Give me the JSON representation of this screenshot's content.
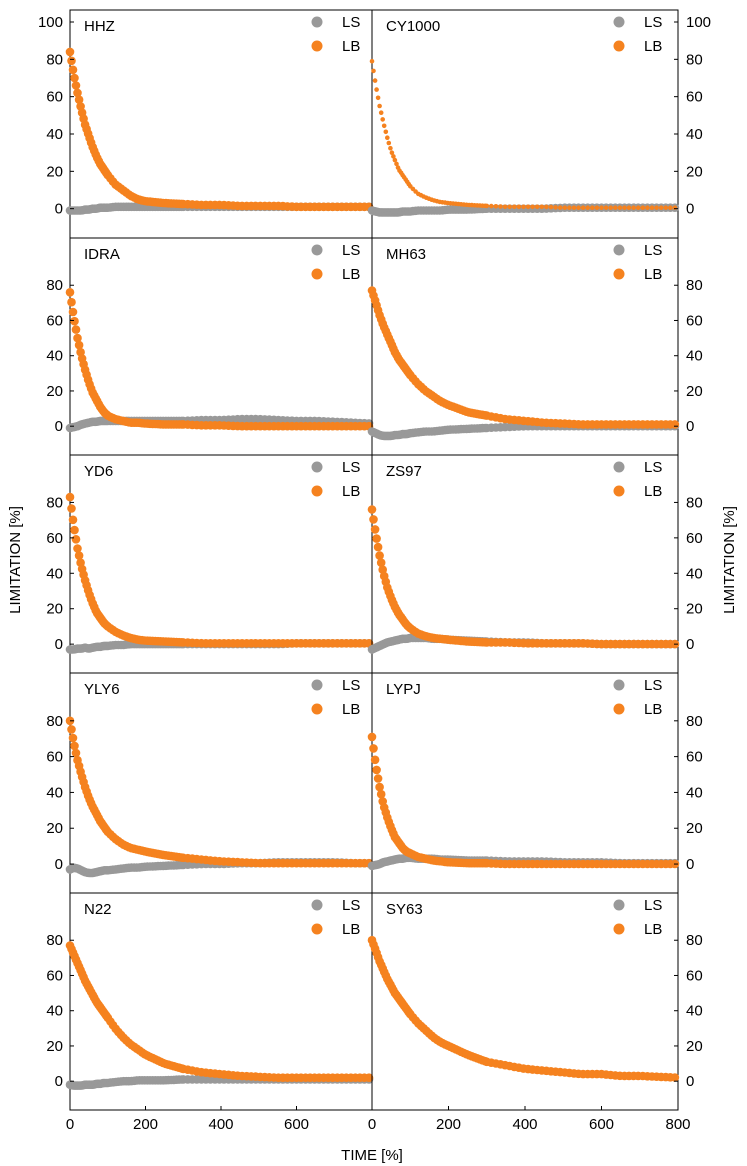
{
  "figure": {
    "ylabel": "LIMITATION [%]",
    "xlabel": "TIME [%]"
  },
  "colors": {
    "LS": "#999999",
    "LB": "#f5821f",
    "axes": "#000000"
  },
  "chart_data": {
    "type": "scatter",
    "layout": "5 rows x 2 columns, shared axes",
    "xlabel": "TIME [%]",
    "ylabel": "LIMITATION [%]",
    "xlim": [
      0,
      800
    ],
    "x_ticks": [
      0,
      200,
      400,
      600,
      800
    ],
    "ylim": [
      -5,
      100
    ],
    "y_ticks": [
      0,
      20,
      40,
      60,
      80,
      100
    ],
    "legend_labels": [
      "LS",
      "LB"
    ],
    "legend_placement": "top-right",
    "grid": false,
    "note": "Series values sampled at the x points shown; LB decays from its initial value, LS stays near zero",
    "x": [
      0,
      10,
      20,
      30,
      40,
      50,
      60,
      70,
      80,
      90,
      100,
      120,
      140,
      160,
      180,
      200,
      250,
      300,
      350,
      400,
      450,
      500,
      550,
      600,
      650,
      700,
      750,
      800
    ],
    "panels": [
      {
        "label": "HHZ",
        "series": [
          {
            "name": "LS",
            "values": [
              -1,
              -1,
              -1,
              -1,
              -0.5,
              -0.5,
              0,
              0,
              0.5,
              0.5,
              0.5,
              1,
              1,
              1,
              1,
              1,
              1,
              1,
              1,
              1,
              1,
              1,
              1,
              1,
              1,
              1,
              1,
              1
            ]
          },
          {
            "name": "LB",
            "values": [
              84,
              72,
              62,
              53,
              45,
              39,
              33,
              28,
              24,
              21,
              18,
              13,
              10,
              7,
              5,
              4,
              3,
              2.5,
              2,
              2,
              1.5,
              1.5,
              1.5,
              1,
              1,
              1,
              1,
              1
            ]
          }
        ]
      },
      {
        "label": "CY1000",
        "series": [
          {
            "name": "LS",
            "values": [
              -1,
              -1.5,
              -2,
              -2,
              -2,
              -2,
              -2,
              -2,
              -1.5,
              -1.5,
              -1.5,
              -1,
              -1,
              -1,
              -1,
              -0.5,
              -0.5,
              0,
              0,
              0,
              0,
              0.5,
              0.5,
              0.5,
              0.5,
              0.5,
              0.5,
              0.5
            ]
          },
          {
            "name": "LB",
            "values": [
              79,
              66,
              55,
              46,
              38,
              31,
              26,
              21,
              18,
              15,
              12,
              8,
              6,
              4.5,
              3.5,
              3,
              2,
              1.5,
              1,
              1,
              1,
              0.5,
              0.5,
              0.5,
              0.5,
              0.5,
              0.5,
              0.5
            ]
          }
        ]
      },
      {
        "label": "IDRA",
        "series": [
          {
            "name": "LS",
            "values": [
              -1,
              -0.5,
              0,
              1,
              1.5,
              2,
              2.5,
              2.5,
              3,
              3,
              3,
              3,
              3,
              3,
              3,
              3,
              3,
              3,
              3.5,
              3.5,
              4,
              4,
              3.5,
              3,
              3,
              2.5,
              2,
              1.5
            ]
          },
          {
            "name": "LB",
            "values": [
              76,
              62,
              50,
              40,
              32,
              25,
              19,
              15,
              11,
              8,
              6,
              4,
              3,
              2,
              2,
              1.5,
              1,
              1,
              0.5,
              0.5,
              0,
              0,
              0,
              0,
              0,
              0,
              0,
              0
            ]
          }
        ]
      },
      {
        "label": "MH63",
        "series": [
          {
            "name": "LS",
            "values": [
              -3,
              -4,
              -5,
              -5.5,
              -5.5,
              -5.5,
              -5,
              -5,
              -4.5,
              -4.5,
              -4,
              -3.5,
              -3,
              -3,
              -2.5,
              -2,
              -1.5,
              -1,
              -0.5,
              0,
              0,
              0,
              0,
              0,
              0,
              0,
              0,
              0
            ]
          },
          {
            "name": "LB",
            "values": [
              77,
              70,
              63,
              57,
              52,
              47,
              42,
              38,
              35,
              32,
              29,
              24,
              20,
              17,
              14,
              12,
              8,
              6,
              4,
              3,
              2,
              1.5,
              1,
              1,
              1,
              1,
              1,
              1
            ]
          }
        ]
      },
      {
        "label": "YD6",
        "series": [
          {
            "name": "LS",
            "values": [
              -3,
              -3,
              -2.5,
              -2.5,
              -2,
              -2.5,
              -2,
              -1.5,
              -1.5,
              -1,
              -1,
              -0.5,
              -0.5,
              0,
              0,
              0,
              0,
              0,
              0,
              0,
              0,
              0,
              0,
              0.5,
              0.5,
              0.5,
              0.5,
              0.5
            ]
          },
          {
            "name": "LB",
            "values": [
              83,
              67,
              54,
              44,
              36,
              29,
              23,
              18,
              15,
              12,
              10,
              7,
              5,
              3.5,
              2.5,
              2,
              1.5,
              1,
              0.5,
              0.5,
              0.5,
              0.5,
              0.5,
              0.5,
              0.5,
              0.5,
              0.5,
              0.5
            ]
          }
        ]
      },
      {
        "label": "ZS97",
        "series": [
          {
            "name": "LS",
            "values": [
              -3,
              -2,
              -1,
              0,
              1,
              1.5,
              2,
              2.5,
              3,
              3,
              3.5,
              3.5,
              3.5,
              3,
              3,
              2.5,
              2,
              1.5,
              1,
              1,
              0.5,
              0.5,
              0.5,
              0,
              0,
              0,
              0,
              0
            ]
          },
          {
            "name": "LB",
            "values": [
              76,
              62,
              50,
              40,
              32,
              26,
              21,
              17,
              14,
              11,
              9,
              6,
              4.5,
              3.5,
              3,
              2.5,
              1.5,
              1,
              1,
              0.5,
              0.5,
              0.5,
              0.5,
              0,
              0,
              0,
              0,
              0
            ]
          }
        ]
      },
      {
        "label": "YLY6",
        "series": [
          {
            "name": "LS",
            "values": [
              -3,
              -2,
              -2.5,
              -3.5,
              -4.5,
              -5,
              -5,
              -4.5,
              -4,
              -3.5,
              -3.5,
              -3,
              -2.5,
              -2,
              -2,
              -1.5,
              -1,
              -0.5,
              0,
              0,
              0.5,
              0.5,
              1,
              1,
              1,
              1,
              0.5,
              0.5
            ]
          },
          {
            "name": "LB",
            "values": [
              80,
              68,
              58,
              50,
              43,
              37,
              32,
              28,
              24,
              21,
              18,
              14,
              11,
              9,
              8,
              7,
              5,
              3.5,
              2.5,
              1.5,
              1,
              0.5,
              0.5,
              0.5,
              0.5,
              0.5,
              0.5,
              0.5
            ]
          }
        ]
      },
      {
        "label": "LYPJ",
        "series": [
          {
            "name": "LS",
            "values": [
              -1,
              -0.5,
              0,
              1,
              1.5,
              2,
              2.5,
              3,
              3,
              3.5,
              3.5,
              3,
              3,
              3,
              2.5,
              2.5,
              2,
              2,
              1.5,
              1.5,
              1.5,
              1,
              1,
              1,
              0.5,
              0.5,
              0.5,
              0.5
            ]
          },
          {
            "name": "LB",
            "values": [
              71,
              55,
              43,
              33,
              26,
              20,
              15,
              12,
              9,
              7,
              6,
              4,
              3,
              2,
              1.5,
              1,
              0.5,
              0.5,
              0,
              0,
              0,
              0,
              0,
              0,
              0,
              0,
              0,
              0
            ]
          }
        ]
      },
      {
        "label": "N22",
        "series": [
          {
            "name": "LS",
            "values": [
              -2,
              -2.5,
              -2.5,
              -2.5,
              -2,
              -2,
              -2,
              -1.5,
              -1.5,
              -1,
              -1,
              -0.5,
              0,
              0,
              0.5,
              0.5,
              0.5,
              1,
              1,
              1,
              1,
              1,
              1,
              1,
              1,
              1,
              1,
              1
            ]
          },
          {
            "name": "LB",
            "values": [
              77,
              72,
              67,
              62,
              57,
              53,
              49,
              45,
              42,
              39,
              36,
              30,
              25,
              21,
              18,
              15,
              10,
              7,
              5,
              4,
              3,
              2.5,
              2,
              2,
              2,
              2,
              2,
              2
            ]
          }
        ]
      },
      {
        "label": "SY63",
        "series": [
          {
            "name": "LB",
            "values": [
              80,
              74,
              68,
              63,
              58,
              54,
              50,
              47,
              44,
              41,
              38,
              33,
              29,
              25,
              22,
              20,
              15,
              11,
              9,
              7,
              6,
              5,
              4,
              4,
              3,
              3,
              2.5,
              2
            ]
          }
        ]
      }
    ]
  }
}
